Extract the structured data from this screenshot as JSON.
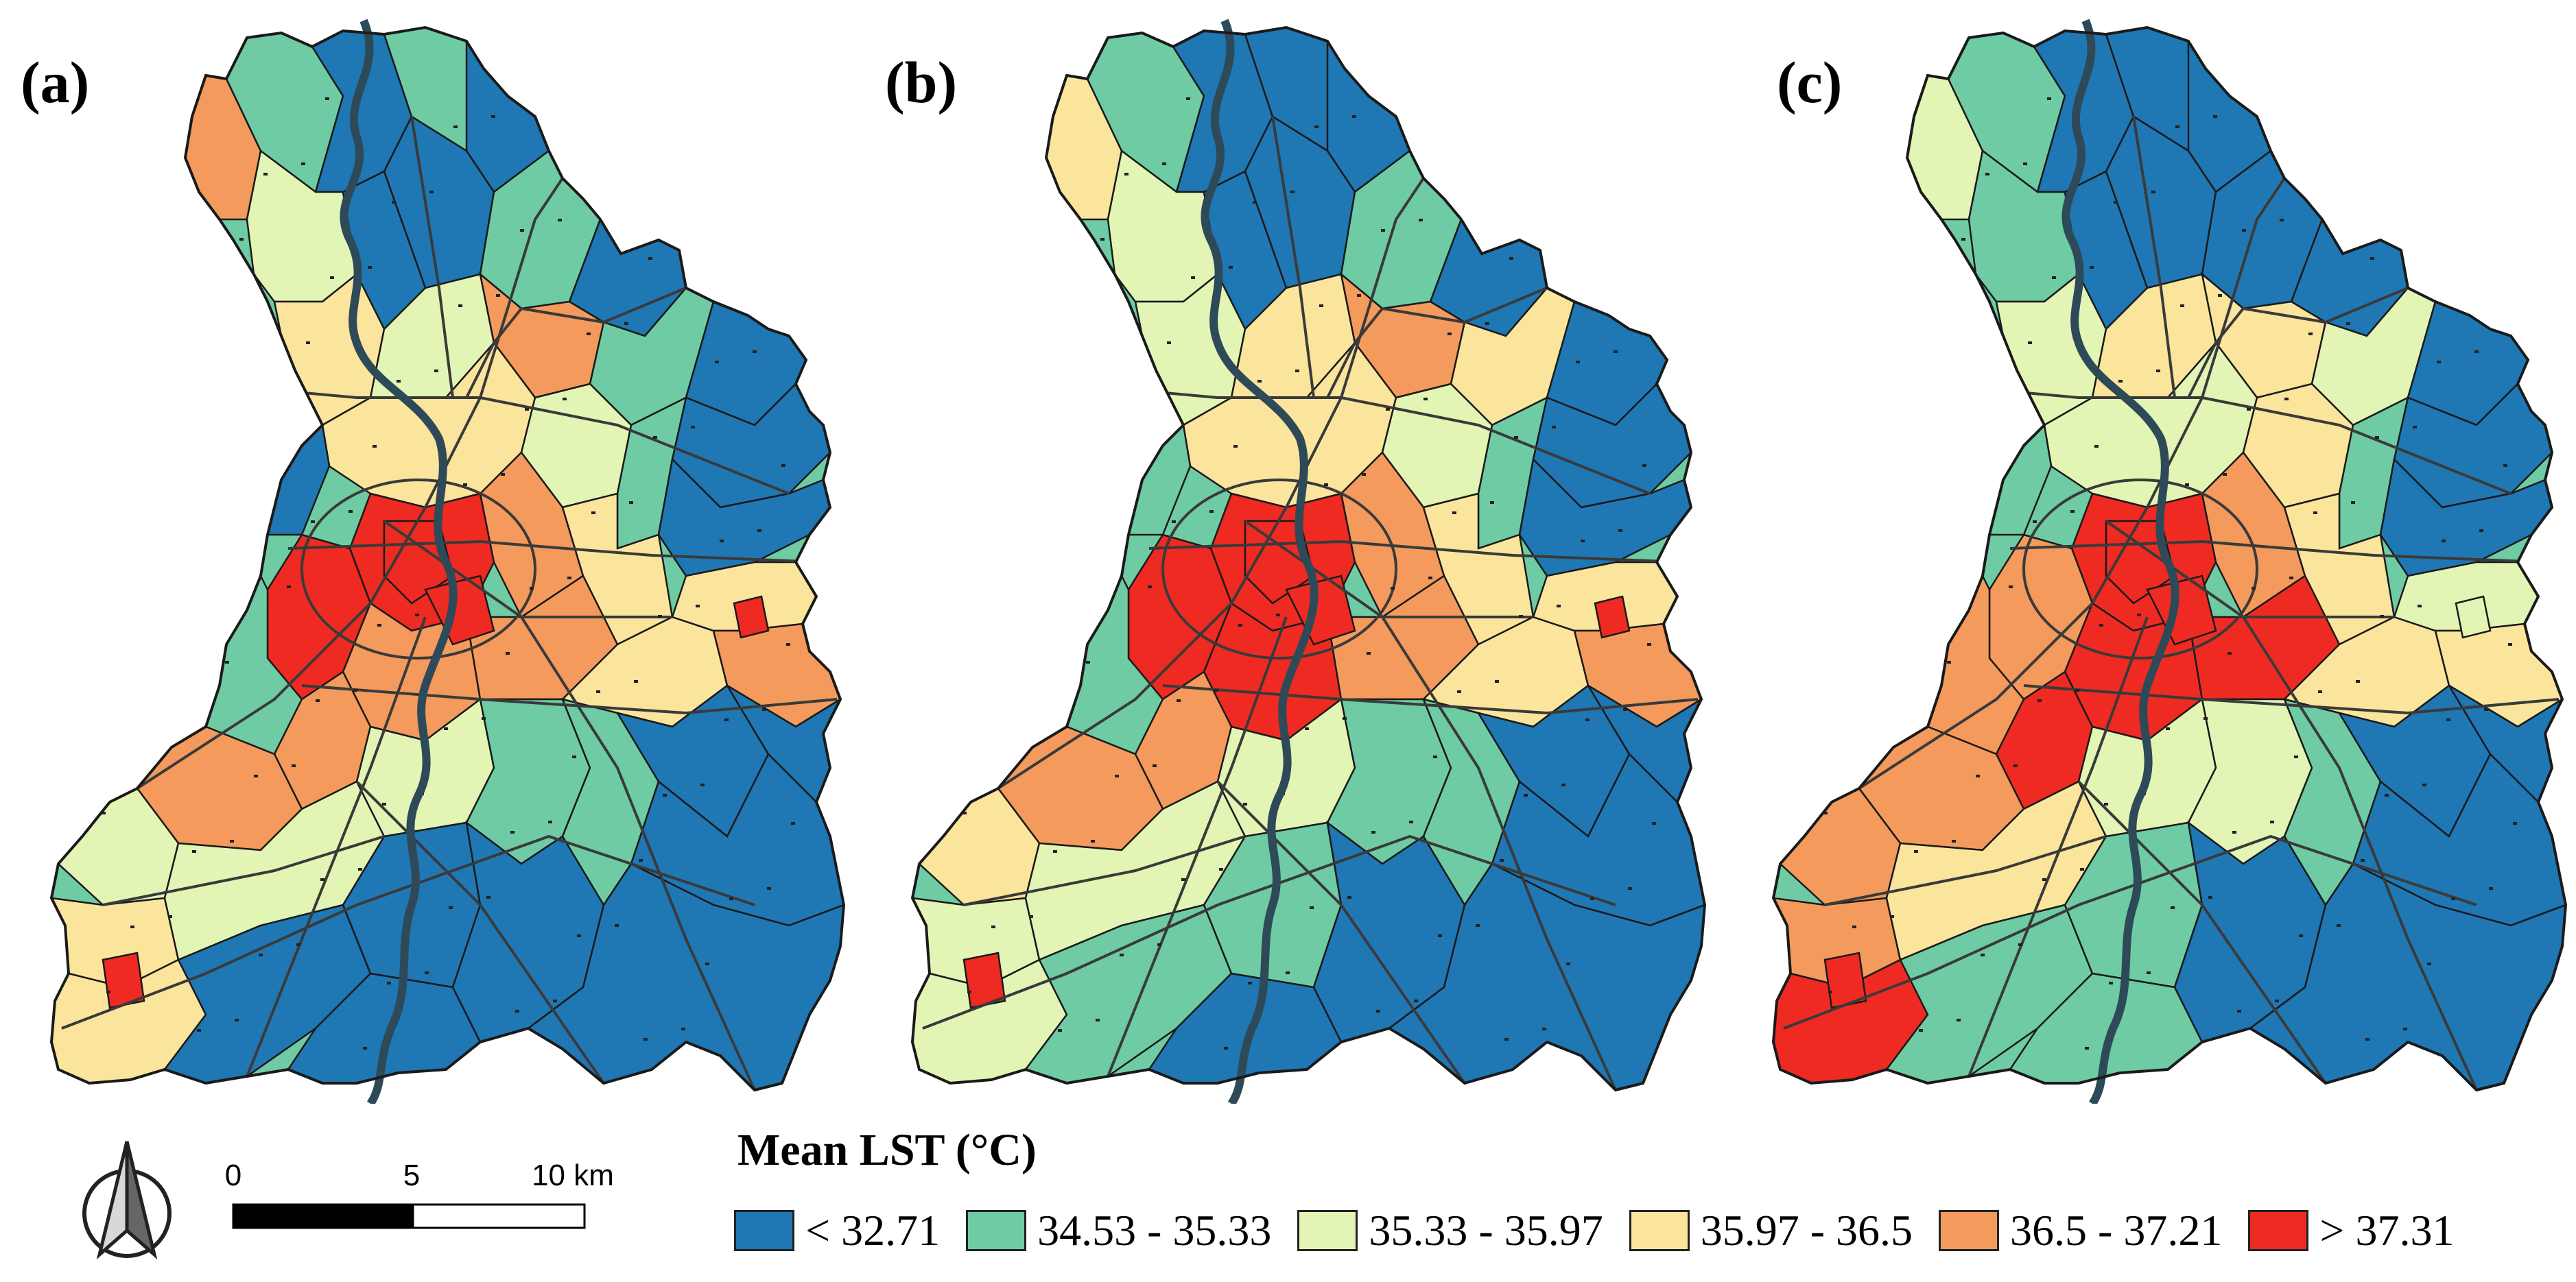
{
  "panels": [
    {
      "label": "(a)",
      "variant": "a"
    },
    {
      "label": "(b)",
      "variant": "b"
    },
    {
      "label": "(c)",
      "variant": "c"
    }
  ],
  "legend": {
    "title": "Mean LST (°C)",
    "items": [
      {
        "label": "< 32.71",
        "color": "#1F77B4"
      },
      {
        "label": "34.53 - 35.33",
        "color": "#6FCBA3"
      },
      {
        "label": "35.33 - 35.97",
        "color": "#E2F5B5"
      },
      {
        "label": "35.97 - 36.5",
        "color": "#FBE49C"
      },
      {
        "label": "36.5 - 37.21",
        "color": "#F39A5C"
      },
      {
        "label": "> 37.31",
        "color": "#EE2A22"
      }
    ]
  },
  "scale_bar": {
    "ticks": [
      "0",
      "5",
      "10 km"
    ]
  },
  "colors": {
    "river": "#2E4A58",
    "road": "#3A3A3A",
    "outline": "#1A1A1A"
  }
}
